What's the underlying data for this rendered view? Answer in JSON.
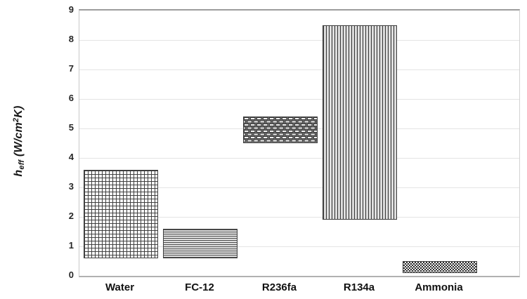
{
  "chart_data": {
    "type": "bar",
    "subtype": "floating-range-bars-with-pattern-fills",
    "title": "",
    "xlabel": "",
    "ylabel": "h_eff (W/cm^2 K)",
    "ylabel_parts": {
      "symbol": "h",
      "subscript": "eff",
      "units_open": " (W/cm",
      "exponent": "2",
      "units_close": "K)"
    },
    "categories": [
      "Water",
      "FC-12",
      "R236fa",
      "R134a",
      "Ammonia"
    ],
    "series": [
      {
        "name": "Water",
        "low": 0.6,
        "high": 3.6,
        "pattern": "grid"
      },
      {
        "name": "FC-12",
        "low": 0.6,
        "high": 1.6,
        "pattern": "horizontal-lines"
      },
      {
        "name": "R236fa",
        "low": 4.5,
        "high": 5.4,
        "pattern": "basketweave"
      },
      {
        "name": "R134a",
        "low": 1.9,
        "high": 8.5,
        "pattern": "vertical-lines"
      },
      {
        "name": "Ammonia",
        "low": 0.1,
        "high": 0.5,
        "pattern": "checkerboard"
      }
    ],
    "ylim": [
      0,
      9
    ],
    "yticks": [
      0,
      1,
      2,
      3,
      4,
      5,
      6,
      7,
      8,
      9
    ],
    "grid": true,
    "legend": "none",
    "colors": {
      "background": "#ffffff",
      "pattern_dark": "#3f3f3f",
      "pattern_mid": "#6a6a6a",
      "pattern_light": "#f2f2f2",
      "grid_line": "#e4e4e4",
      "plot_border": "#9c9c9c",
      "axis_line": "#b1b1b1",
      "text": "#111111"
    }
  }
}
